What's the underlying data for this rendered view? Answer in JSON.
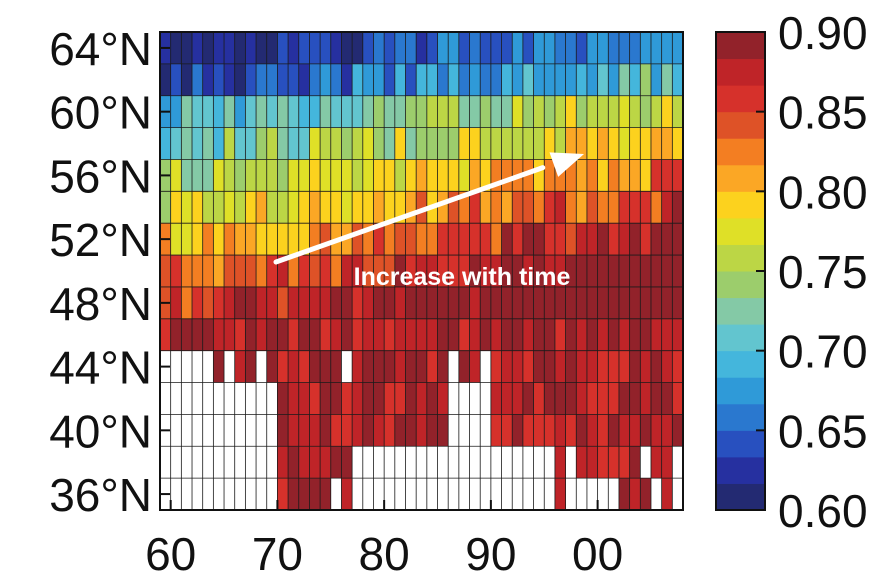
{
  "chart_data": {
    "type": "heatmap",
    "title": "",
    "xlabel": "",
    "ylabel": "",
    "x_tick_labels": [
      "60",
      "70",
      "80",
      "90",
      "00"
    ],
    "x_ticks": [
      1960,
      1970,
      1980,
      1990,
      2000
    ],
    "x_range": [
      1959,
      2008
    ],
    "y_tick_labels": [
      "36°N",
      "40°N",
      "44°N",
      "48°N",
      "52°N",
      "56°N",
      "60°N",
      "64°N"
    ],
    "y_ticks": [
      36,
      40,
      44,
      48,
      52,
      56,
      60,
      64
    ],
    "y_range": [
      35,
      65
    ],
    "years": [
      1959,
      2007
    ],
    "latitudes": [
      36,
      64
    ],
    "colorbar": {
      "min": 0.6,
      "max": 0.9,
      "tick_labels": [
        "0.90",
        "0.85",
        "0.80",
        "0.75",
        "0.70",
        "0.65",
        "0.60"
      ],
      "ticks": [
        0.9,
        0.85,
        0.8,
        0.75,
        0.7,
        0.65,
        0.6
      ]
    },
    "annotation": "Increase with time",
    "missing_color": "#ffffff",
    "grid": true,
    "colormap": [
      "#232a72",
      "#2630a0",
      "#2850bf",
      "#2a78cf",
      "#2f9ad8",
      "#44b6dc",
      "#62c5cf",
      "#84c9a6",
      "#9ccd6c",
      "#bcd645",
      "#dfe027",
      "#fcd21e",
      "#fba725",
      "#f37e22",
      "#de5227",
      "#d6312b",
      "#bf2428",
      "#92222a"
    ]
  }
}
